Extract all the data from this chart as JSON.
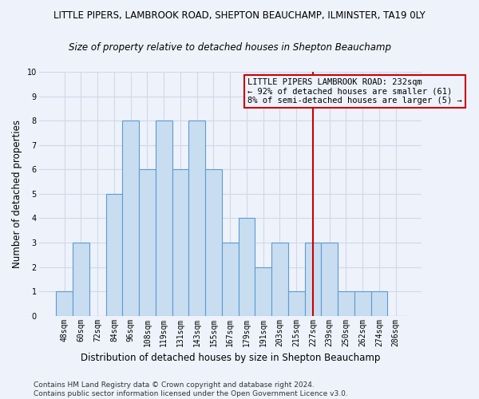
{
  "title_line1": "LITTLE PIPERS, LAMBROOK ROAD, SHEPTON BEAUCHAMP, ILMINSTER, TA19 0LY",
  "title_line2": "Size of property relative to detached houses in Shepton Beauchamp",
  "xlabel": "Distribution of detached houses by size in Shepton Beauchamp",
  "ylabel": "Number of detached properties",
  "categories": [
    "48sqm",
    "60sqm",
    "72sqm",
    "84sqm",
    "96sqm",
    "108sqm",
    "119sqm",
    "131sqm",
    "143sqm",
    "155sqm",
    "167sqm",
    "179sqm",
    "191sqm",
    "203sqm",
    "215sqm",
    "227sqm",
    "239sqm",
    "250sqm",
    "262sqm",
    "274sqm",
    "286sqm"
  ],
  "values": [
    1,
    3,
    0,
    5,
    8,
    6,
    8,
    6,
    8,
    6,
    3,
    4,
    2,
    3,
    1,
    3,
    3,
    1,
    1,
    1,
    0
  ],
  "bar_color": "#c8ddf0",
  "bar_edge_color": "#5b9bd5",
  "grid_color": "#d0d8e8",
  "vline_color": "#cc0000",
  "annotation_text": "LITTLE PIPERS LAMBROOK ROAD: 232sqm\n← 92% of detached houses are smaller (61)\n8% of semi-detached houses are larger (5) →",
  "ylim": [
    0,
    10
  ],
  "yticks": [
    0,
    1,
    2,
    3,
    4,
    5,
    6,
    7,
    8,
    9,
    10
  ],
  "footnote": "Contains HM Land Registry data © Crown copyright and database right 2024.\nContains public sector information licensed under the Open Government Licence v3.0.",
  "background_color": "#eef2fb",
  "title_fontsize": 8.5,
  "subtitle_fontsize": 8.5,
  "ylabel_fontsize": 8.5,
  "xlabel_fontsize": 8.5,
  "tick_fontsize": 7,
  "annotation_fontsize": 7.5,
  "footnote_fontsize": 6.5,
  "vline_index": 15
}
